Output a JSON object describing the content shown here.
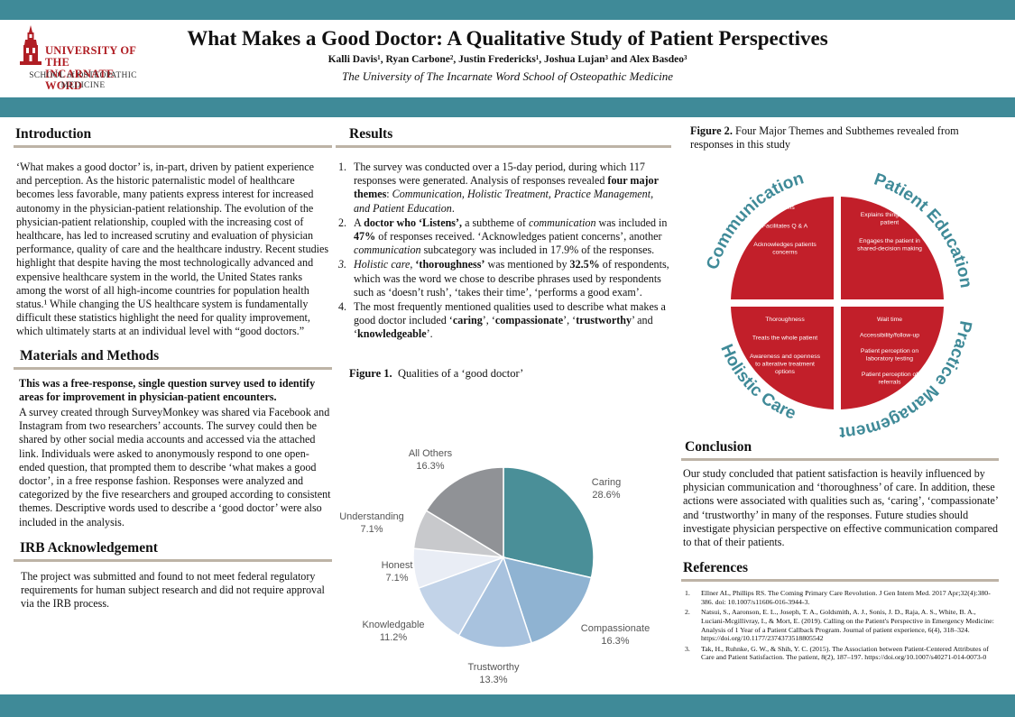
{
  "header": {
    "logo": {
      "line1": "UNIVERSITY OF THE",
      "line2": "INCARNATE WORD",
      "line3": "SCHOOL of OSTEOPATHIC",
      "line4": "MEDICINE"
    },
    "title": "What Makes a Good Doctor: A Qualitative Study of Patient Perspectives",
    "authors": "Kalli Davis¹, Ryan Carbone², Justin Fredericks¹, Joshua Lujan³ and Alex Basdeo³",
    "affiliation": "The University of The Incarnate Word School of Osteopathic Medicine"
  },
  "introduction": {
    "heading": "Introduction",
    "text": "‘What makes a good doctor’ is, in-part, driven by patient experience and perception. As the historic paternalistic model of healthcare becomes less favorable, many patients express interest for increased autonomy in the physician-patient relationship. The evolution of the physician-patient relationship, coupled with the increasing cost of healthcare, has led to increased scrutiny and evaluation of physician performance, quality of care and the healthcare industry. Recent studies highlight that despite having the most technologically advanced and expensive healthcare system in the world, the United States ranks among the worst of all high-income countries for population health status.¹ While changing the US healthcare system is fundamentally difficult these statistics highlight the need for quality improvement, which ultimately starts at an individual level with “good doctors.”"
  },
  "methods": {
    "heading": "Materials and Methods",
    "bold": "This was a free-response, single question survey used to identify areas for improvement in physician-patient encounters.",
    "text": "A survey created through SurveyMonkey was shared via Facebook and Instagram from two researchers’ accounts. The survey could then be shared by other social media accounts and accessed via the attached link. Individuals were asked to anonymously respond to one open-ended question, that prompted them to describe ‘what makes a good doctor’, in a free response fashion. Responses were analyzed and categorized by the five researchers and grouped according to consistent themes. Descriptive words used to describe a ‘good doctor’ were also included in the analysis."
  },
  "irb": {
    "heading": "IRB Acknowledgement",
    "text": "The project was submitted and found to not meet federal regulatory requirements for human subject research and did not require approval via the IRB process."
  },
  "results": {
    "heading": "Results",
    "items": [
      {
        "num": "1.",
        "parts": [
          {
            "t": "The survey was conducted over a 15-day period, during which 117 responses were generated. Analysis of responses revealed ",
            "s": ""
          },
          {
            "t": "four major themes",
            "s": "b"
          },
          {
            "t": ": ",
            "s": ""
          },
          {
            "t": "Communication, Holistic Treatment, Practice Management, and Patient Education",
            "s": "i"
          },
          {
            "t": ".",
            "s": ""
          }
        ]
      },
      {
        "num": "2.",
        "parts": [
          {
            "t": "A ",
            "s": ""
          },
          {
            "t": "doctor who ‘Listens’,",
            "s": "b"
          },
          {
            "t": " a subtheme of ",
            "s": ""
          },
          {
            "t": "communication",
            "s": "i"
          },
          {
            "t": " was included in ",
            "s": ""
          },
          {
            "t": "47%",
            "s": "b"
          },
          {
            "t": " of responses received. ‘Acknowledges patient concerns’, another ",
            "s": ""
          },
          {
            "t": "communication",
            "s": "i"
          },
          {
            "t": " subcategory was included in 17.9% of the responses.",
            "s": ""
          }
        ]
      },
      {
        "num": "3.",
        "parts": [
          {
            "t": "Holistic care",
            "s": "i"
          },
          {
            "t": ", ",
            "s": ""
          },
          {
            "t": "‘thoroughness’",
            "s": "b"
          },
          {
            "t": " was mentioned by ",
            "s": ""
          },
          {
            "t": "32.5%",
            "s": "b"
          },
          {
            "t": " of respondents, which was the word we chose to describe phrases used by respondents such as ‘doesn’t rush’, ‘takes their time’, ‘performs a good exam’.",
            "s": ""
          }
        ]
      },
      {
        "num": "4.",
        "parts": [
          {
            "t": "The most frequently mentioned qualities used to describe what makes a good doctor included ‘",
            "s": ""
          },
          {
            "t": "caring",
            "s": "b"
          },
          {
            "t": "’, ‘",
            "s": ""
          },
          {
            "t": "compassionate",
            "s": "b"
          },
          {
            "t": "’, ‘",
            "s": ""
          },
          {
            "t": "trustworthy",
            "s": "b"
          },
          {
            "t": "’ and ‘",
            "s": ""
          },
          {
            "t": "knowledgeable",
            "s": "b"
          },
          {
            "t": "’.",
            "s": ""
          }
        ]
      }
    ]
  },
  "figure1": {
    "label": "Figure 1.",
    "caption": "Qualities of a ‘good doctor’"
  },
  "figure2": {
    "label": "Figure 2.",
    "caption": "Four Major Themes and Subthemes revealed from responses in this study"
  },
  "chart_data": {
    "type": "pie",
    "categories": [
      "Caring",
      "Compassionate",
      "Trustworthy",
      "Knowledgable",
      "Honest",
      "Understanding",
      "All Others"
    ],
    "values": [
      28.6,
      16.3,
      13.3,
      11.2,
      7.1,
      7.1,
      16.3
    ],
    "labels": [
      "28.6%",
      "16.3%",
      "13.3%",
      "11.2%",
      "7.1%",
      "7.1%",
      "16.3%"
    ],
    "colors": [
      "#4a8f98",
      "#8fb3d2",
      "#a8c2de",
      "#c2d3e8",
      "#e9edf5",
      "#c8c9cc",
      "#909296"
    ]
  },
  "themes": {
    "color": "#c21f2a",
    "quadrants": [
      {
        "name": "Communication",
        "items": [
          "Listens",
          "Facilitates Q & A",
          "Acknowledges patients concerns"
        ]
      },
      {
        "name": "Patient Education",
        "items": [
          "Explains things to the patient",
          "Engages the patient in shared-decision making"
        ]
      },
      {
        "name": "Holistic Care",
        "items": [
          "Thoroughness",
          "Treats the whole patient",
          "Awareness and openness to alterative treatment options"
        ]
      },
      {
        "name": "Practice Management",
        "items": [
          "Wait time",
          "Accessibility/follow-up",
          "Patient perception on laboratory testing",
          "Patient perception of referrals"
        ]
      }
    ]
  },
  "conclusion": {
    "heading": "Conclusion",
    "text": "Our study concluded that patient satisfaction is heavily influenced by physician communication and ‘thoroughness’ of care. In addition, these actions were associated with qualities such as, ‘caring’, ‘compassionate’ and ‘trustworthy’ in many of the responses. Future studies should investigate physician perspective on effective communication compared to that of their patients."
  },
  "references": {
    "heading": "References",
    "items": [
      {
        "num": "1.",
        "text": "Ellner AL, Phillips RS. The Coming Primary Care Revolution. J Gen Intern Med. 2017 Apr;32(4):380-386. doi: 10.1007/s11606-016-3944-3."
      },
      {
        "num": "2.",
        "text": "Natsui, S., Aaronson, E. L., Joseph, T. A., Goldsmith, A. J., Sonis, J. D., Raja, A. S., White, B. A., Luciani-Mcgillivray, I., & Mort, E. (2019). Calling on the Patient's Perspective in Emergency Medicine: Analysis of 1 Year of a Patient Callback Program. Journal of patient experience, 6(4), 318–324. https://doi.org/10.1177/2374373518805542"
      },
      {
        "num": "3.",
        "text": "Tak, H., Ruhnke, G. W., & Shih, Y. C. (2015). The Association between Patient-Centered Attributes of Care and Patient Satisfaction. The patient, 8(2), 187–197. https://doi.org/10.1007/s40271-014-0073-0"
      }
    ]
  }
}
